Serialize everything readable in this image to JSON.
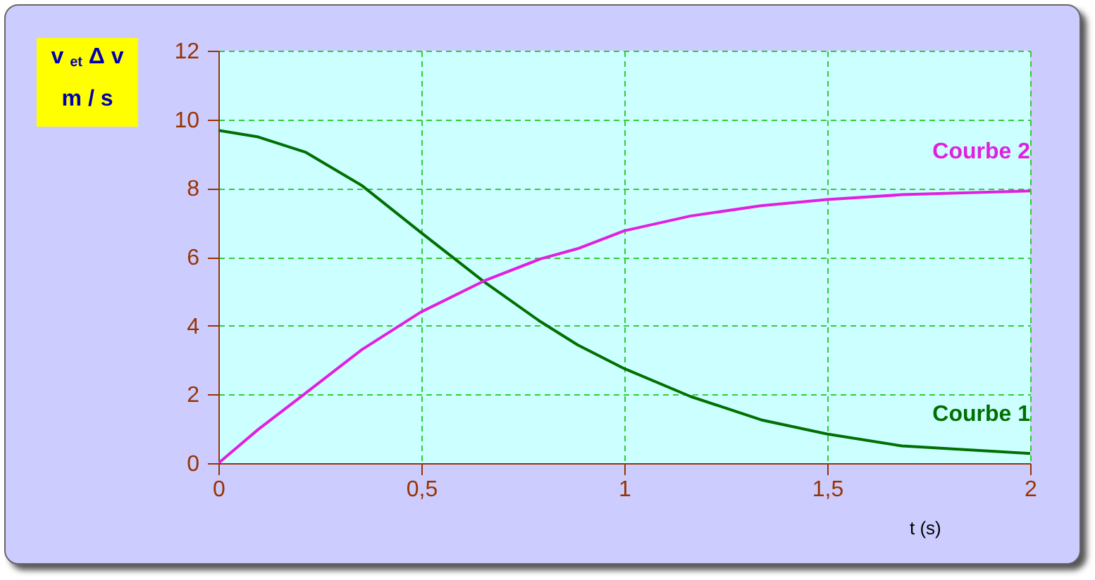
{
  "chart_data": {
    "type": "line",
    "xlabel": "t  (s)",
    "ylabel": "v $_{et}$ Δ v\nm / s",
    "x": [
      0,
      0.098,
      0.214,
      0.353,
      0.498,
      0.654,
      0.793,
      0.885,
      1,
      1.163,
      1.337,
      1.499,
      1.684,
      2
    ],
    "series": [
      {
        "name": "Courbe 1",
        "color": "#007000",
        "values": [
          9.68,
          9.49,
          9.05,
          8.08,
          6.72,
          5.28,
          4.12,
          3.44,
          2.75,
          1.94,
          1.26,
          0.85,
          0.5,
          0.28
        ]
      },
      {
        "name": "Courbe 2",
        "color": "#e020e0",
        "values": [
          0,
          0.98,
          2.03,
          3.3,
          4.39,
          5.3,
          5.94,
          6.24,
          6.76,
          7.19,
          7.49,
          7.67,
          7.81,
          7.92
        ]
      }
    ],
    "xlim": [
      0,
      2
    ],
    "ylim": [
      0,
      12
    ],
    "xticks": [
      0,
      {
        "value": 0.5,
        "label": "0,5"
      },
      1,
      {
        "value": 1.5,
        "label": "1,5"
      },
      2
    ],
    "yticks": [
      0,
      2,
      4,
      6,
      8,
      10,
      12
    ],
    "grid": true
  }
}
